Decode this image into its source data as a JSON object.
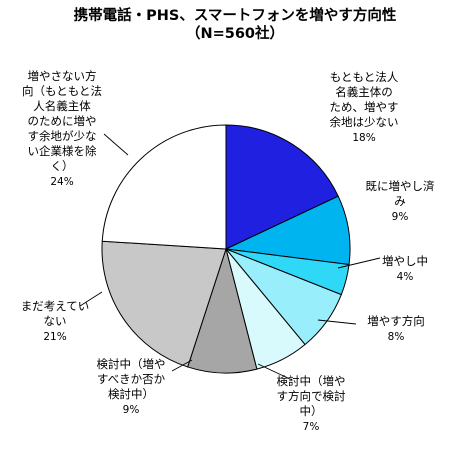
{
  "chart_data": {
    "type": "pie",
    "title": "携帯電話・PHS、スマートフォンを増やす方向性",
    "subtitle": "（N=560社）",
    "slices": [
      {
        "label": "もともと法人名義主体のため、増やす余地は少ない",
        "label_lines": [
          "もともと法人",
          "名義主体の",
          "ため、増やす",
          "余地は少ない"
        ],
        "value": 18,
        "value_label": "18%",
        "color": "#2020e0"
      },
      {
        "label": "既に増やし済み",
        "label_lines": [
          "既に増やし済",
          "み"
        ],
        "value": 9,
        "value_label": "9%",
        "color": "#00b4f0"
      },
      {
        "label": "増やし中",
        "label_lines": [
          "増やし中"
        ],
        "value": 4,
        "value_label": "4%",
        "color": "#30d8f8"
      },
      {
        "label": "増やす方向",
        "label_lines": [
          "増やす方向"
        ],
        "value": 8,
        "value_label": "8%",
        "color": "#99eefc"
      },
      {
        "label": "検討中（増やす方向で検討中）",
        "label_lines": [
          "検討中（増や",
          "す方向で検討",
          "中）"
        ],
        "value": 7,
        "value_label": "7%",
        "color": "#d8fafd"
      },
      {
        "label": "検討中（増やすべきか否か検討中）",
        "label_lines": [
          "検討中（増や",
          "すべきか否か",
          "検討中）"
        ],
        "value": 9,
        "value_label": "9%",
        "color": "#a6a6a6"
      },
      {
        "label": "まだ考えていない",
        "label_lines": [
          "まだ考えてい",
          "ない"
        ],
        "value": 21,
        "value_label": "21%",
        "color": "#c8c8c8"
      },
      {
        "label": "増やさない方向（もともと法人名義主体のために増やす余地が少ない企業様を除く）",
        "label_lines": [
          "増やさない方",
          "向（もともと法",
          "人名義主体",
          "のために増や",
          "す余地が少な",
          "い企業様を除",
          "く）"
        ],
        "value": 24,
        "value_label": "24%",
        "color": "#ffffff"
      }
    ],
    "start_angle_deg": 0,
    "direction": "clockwise",
    "legend": "none"
  }
}
